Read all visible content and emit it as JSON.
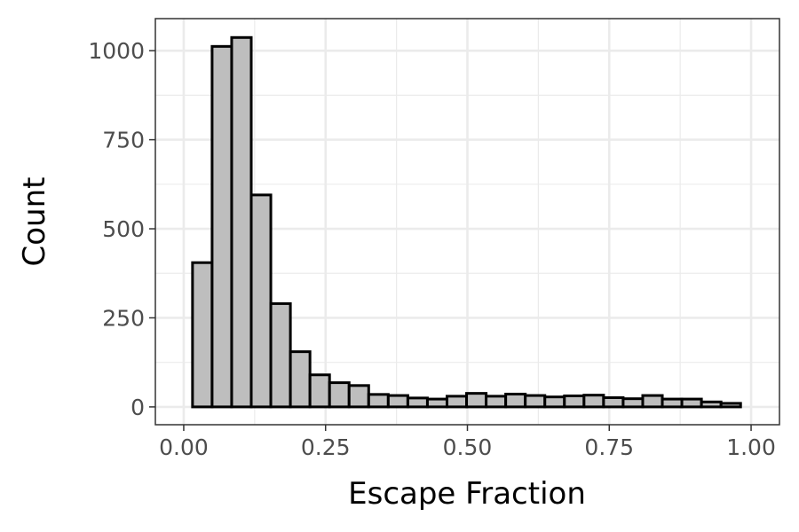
{
  "chart_data": {
    "type": "bar",
    "subtype": "histogram",
    "title": "",
    "xlabel": "Escape Fraction",
    "ylabel": "Count",
    "xlim": [
      -0.05,
      1.05
    ],
    "ylim": [
      -50,
      1090
    ],
    "x_ticks": [
      0.0,
      0.25,
      0.5,
      0.75,
      1.0
    ],
    "x_tick_labels": [
      "0.00",
      "0.25",
      "0.50",
      "0.75",
      "1.00"
    ],
    "y_ticks": [
      0,
      250,
      500,
      750,
      1000
    ],
    "y_tick_labels": [
      "0",
      "250",
      "500",
      "750",
      "1000"
    ],
    "grid": true,
    "legend": "none",
    "bin_width": 0.0345,
    "bin_start": 0.0155,
    "values": [
      405,
      1012,
      1037,
      595,
      290,
      155,
      90,
      68,
      60,
      35,
      32,
      25,
      22,
      30,
      38,
      30,
      36,
      32,
      28,
      31,
      33,
      26,
      23,
      32,
      22,
      22,
      14,
      10
    ],
    "colors": {
      "bar_fill": "#bebebe",
      "bar_outline": "#000000",
      "grid": "#ebebeb",
      "panel_border": "#333333",
      "tick_text": "#4d4d4d",
      "axis_title": "#000000"
    }
  }
}
